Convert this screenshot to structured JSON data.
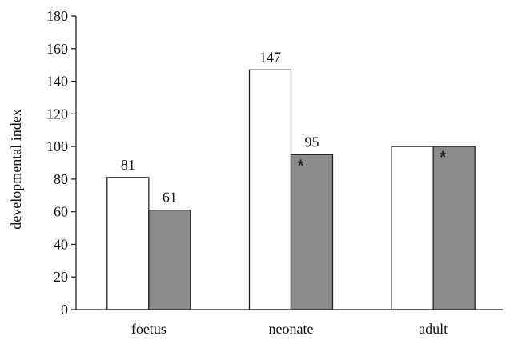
{
  "chart_data": {
    "type": "bar",
    "ylabel": "developmental index",
    "xlabel": "",
    "ylim": [
      0,
      180
    ],
    "yticks": [
      0,
      20,
      40,
      60,
      80,
      100,
      120,
      140,
      160,
      180
    ],
    "grid": false,
    "categories": [
      "foetus",
      "neonate",
      "adult"
    ],
    "series": [
      {
        "values": [
          81,
          147,
          100
        ],
        "data_labels": [
          "81",
          "147",
          ""
        ],
        "markers": [
          "",
          "",
          ""
        ],
        "color": "#ffffff"
      },
      {
        "values": [
          61,
          95,
          100
        ],
        "data_labels": [
          "61",
          "95",
          ""
        ],
        "markers": [
          "",
          "*",
          "*"
        ],
        "color": "#8c8c8c"
      }
    ]
  }
}
